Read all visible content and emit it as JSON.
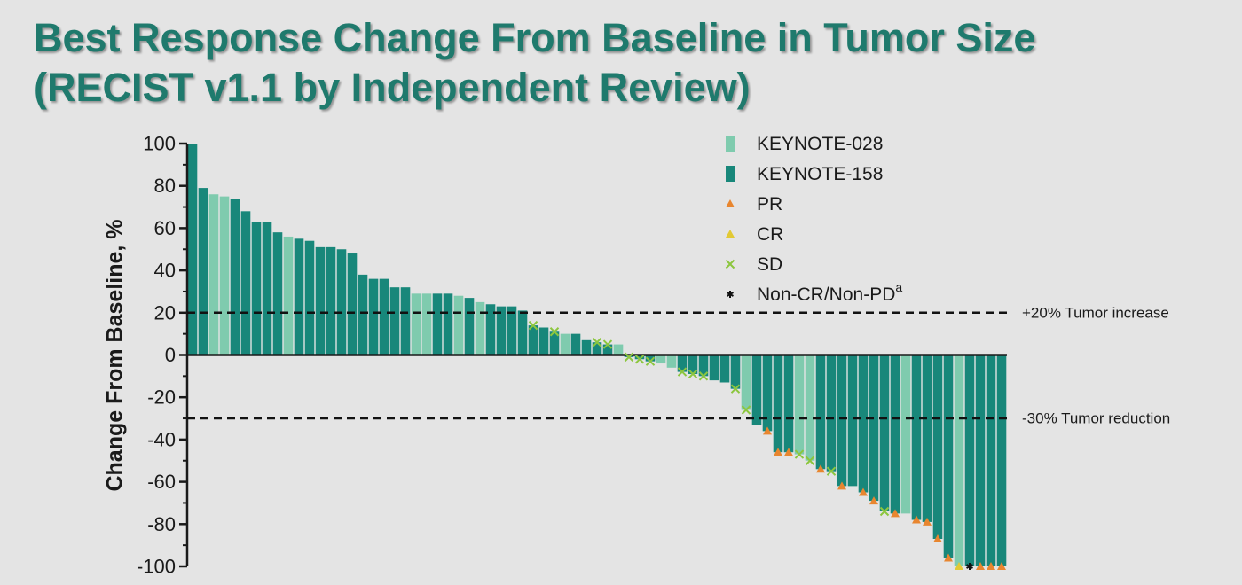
{
  "chart_data": {
    "type": "bar",
    "title": "Best Response Change From Baseline in Tumor Size",
    "subtitle": "(RECIST v1.1 by Independent Review)",
    "ylabel": "Change  From Baseline, %",
    "ylim": [
      -100,
      100
    ],
    "yticks": [
      "100",
      "80",
      "60",
      "40",
      "20",
      "0",
      "-20",
      "-40",
      "-60",
      "-80",
      "-100"
    ],
    "colors": {
      "KEYNOTE-028": "#7fcbae",
      "KEYNOTE-158": "#18877a",
      "PR": "#e8862f",
      "CR": "#e2c934",
      "SD": "#8cc63e",
      "Non-CR/Non-PD": "#111111"
    },
    "legend": [
      {
        "label": "KEYNOTE-028",
        "symbol": "square-light"
      },
      {
        "label": "KEYNOTE-158",
        "symbol": "square-dark"
      },
      {
        "label": "PR",
        "symbol": "triangle-orange"
      },
      {
        "label": "CR",
        "symbol": "triangle-yellow"
      },
      {
        "label": "SD",
        "symbol": "x-green"
      },
      {
        "label": "Non-CR/Non-PD",
        "sup": "a",
        "symbol": "asterisk"
      }
    ],
    "reference_lines": [
      {
        "y": 20,
        "label": "+20% Tumor increase"
      },
      {
        "y": -30,
        "label": "-30% Tumor reduction"
      }
    ],
    "bars": [
      {
        "value": 100,
        "study": "KEYNOTE-158"
      },
      {
        "value": 79,
        "study": "KEYNOTE-158"
      },
      {
        "value": 76,
        "study": "KEYNOTE-028"
      },
      {
        "value": 75,
        "study": "KEYNOTE-028"
      },
      {
        "value": 74,
        "study": "KEYNOTE-158"
      },
      {
        "value": 68,
        "study": "KEYNOTE-158"
      },
      {
        "value": 63,
        "study": "KEYNOTE-158"
      },
      {
        "value": 63,
        "study": "KEYNOTE-158"
      },
      {
        "value": 58,
        "study": "KEYNOTE-158"
      },
      {
        "value": 56,
        "study": "KEYNOTE-028"
      },
      {
        "value": 55,
        "study": "KEYNOTE-158"
      },
      {
        "value": 54,
        "study": "KEYNOTE-158"
      },
      {
        "value": 51,
        "study": "KEYNOTE-158"
      },
      {
        "value": 51,
        "study": "KEYNOTE-158"
      },
      {
        "value": 50,
        "study": "KEYNOTE-158"
      },
      {
        "value": 48,
        "study": "KEYNOTE-158"
      },
      {
        "value": 38,
        "study": "KEYNOTE-158"
      },
      {
        "value": 36,
        "study": "KEYNOTE-158"
      },
      {
        "value": 36,
        "study": "KEYNOTE-158"
      },
      {
        "value": 32,
        "study": "KEYNOTE-158"
      },
      {
        "value": 32,
        "study": "KEYNOTE-158"
      },
      {
        "value": 29,
        "study": "KEYNOTE-028"
      },
      {
        "value": 29,
        "study": "KEYNOTE-028"
      },
      {
        "value": 29,
        "study": "KEYNOTE-158"
      },
      {
        "value": 29,
        "study": "KEYNOTE-158"
      },
      {
        "value": 28,
        "study": "KEYNOTE-028"
      },
      {
        "value": 27,
        "study": "KEYNOTE-158"
      },
      {
        "value": 25,
        "study": "KEYNOTE-028"
      },
      {
        "value": 24,
        "study": "KEYNOTE-158"
      },
      {
        "value": 23,
        "study": "KEYNOTE-158"
      },
      {
        "value": 23,
        "study": "KEYNOTE-158"
      },
      {
        "value": 21,
        "study": "KEYNOTE-158"
      },
      {
        "value": 14,
        "study": "KEYNOTE-158",
        "marker": "SD"
      },
      {
        "value": 13,
        "study": "KEYNOTE-158"
      },
      {
        "value": 11,
        "study": "KEYNOTE-158",
        "marker": "SD"
      },
      {
        "value": 10,
        "study": "KEYNOTE-028"
      },
      {
        "value": 10,
        "study": "KEYNOTE-158"
      },
      {
        "value": 7,
        "study": "KEYNOTE-158"
      },
      {
        "value": 6,
        "study": "KEYNOTE-158",
        "marker": "SD"
      },
      {
        "value": 5,
        "study": "KEYNOTE-158",
        "marker": "SD"
      },
      {
        "value": 5,
        "study": "KEYNOTE-028"
      },
      {
        "value": -1,
        "study": "KEYNOTE-158",
        "marker": "SD"
      },
      {
        "value": -2,
        "study": "KEYNOTE-158",
        "marker": "SD"
      },
      {
        "value": -3,
        "study": "KEYNOTE-158",
        "marker": "SD"
      },
      {
        "value": -4,
        "study": "KEYNOTE-028"
      },
      {
        "value": -6,
        "study": "KEYNOTE-028"
      },
      {
        "value": -8,
        "study": "KEYNOTE-158",
        "marker": "SD"
      },
      {
        "value": -9,
        "study": "KEYNOTE-158",
        "marker": "SD"
      },
      {
        "value": -10,
        "study": "KEYNOTE-158",
        "marker": "SD"
      },
      {
        "value": -12,
        "study": "KEYNOTE-158"
      },
      {
        "value": -13,
        "study": "KEYNOTE-158"
      },
      {
        "value": -16,
        "study": "KEYNOTE-158",
        "marker": "SD"
      },
      {
        "value": -26,
        "study": "KEYNOTE-028",
        "marker": "SD"
      },
      {
        "value": -33,
        "study": "KEYNOTE-158"
      },
      {
        "value": -36,
        "study": "KEYNOTE-158",
        "marker": "PR"
      },
      {
        "value": -46,
        "study": "KEYNOTE-158",
        "marker": "PR"
      },
      {
        "value": -46,
        "study": "KEYNOTE-158",
        "marker": "PR"
      },
      {
        "value": -47,
        "study": "KEYNOTE-028",
        "marker": "SD"
      },
      {
        "value": -50,
        "study": "KEYNOTE-028",
        "marker": "SD"
      },
      {
        "value": -54,
        "study": "KEYNOTE-158",
        "marker": "PR"
      },
      {
        "value": -55,
        "study": "KEYNOTE-158",
        "marker": "SD"
      },
      {
        "value": -62,
        "study": "KEYNOTE-158",
        "marker": "PR"
      },
      {
        "value": -62,
        "study": "KEYNOTE-158"
      },
      {
        "value": -65,
        "study": "KEYNOTE-158",
        "marker": "PR"
      },
      {
        "value": -69,
        "study": "KEYNOTE-158",
        "marker": "PR"
      },
      {
        "value": -74,
        "study": "KEYNOTE-158",
        "marker": "SD"
      },
      {
        "value": -75,
        "study": "KEYNOTE-158",
        "marker": "PR"
      },
      {
        "value": -75,
        "study": "KEYNOTE-028"
      },
      {
        "value": -78,
        "study": "KEYNOTE-158",
        "marker": "PR"
      },
      {
        "value": -79,
        "study": "KEYNOTE-158",
        "marker": "PR"
      },
      {
        "value": -87,
        "study": "KEYNOTE-158",
        "marker": "PR"
      },
      {
        "value": -96,
        "study": "KEYNOTE-158",
        "marker": "PR"
      },
      {
        "value": -100,
        "study": "KEYNOTE-028",
        "marker": "CR"
      },
      {
        "value": -100,
        "study": "KEYNOTE-158",
        "marker": "Non-CR/Non-PD"
      },
      {
        "value": -100,
        "study": "KEYNOTE-158",
        "marker": "PR"
      },
      {
        "value": -100,
        "study": "KEYNOTE-158",
        "marker": "PR"
      },
      {
        "value": -100,
        "study": "KEYNOTE-158",
        "marker": "PR"
      }
    ]
  }
}
